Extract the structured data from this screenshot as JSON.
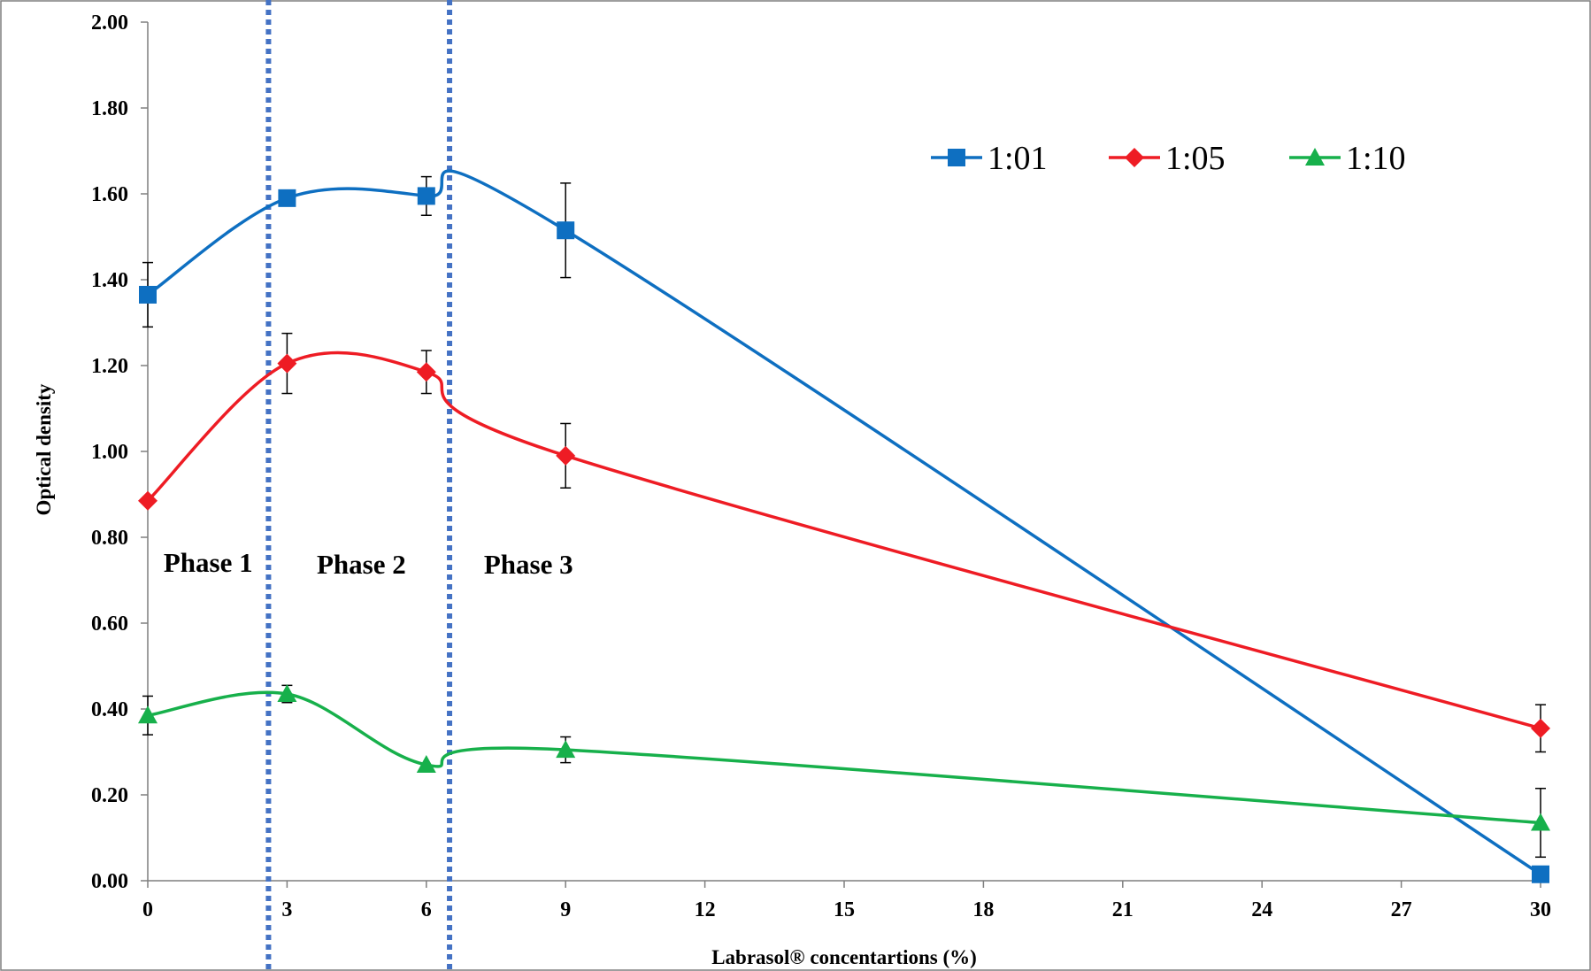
{
  "chart_data": {
    "type": "line",
    "xlabel": "Labrasol® concentartions (%)",
    "ylabel": "Optical density",
    "xlim": [
      0,
      30
    ],
    "ylim": [
      0,
      2.0
    ],
    "x_ticks": [
      "0",
      "3",
      "6",
      "9",
      "12",
      "15",
      "18",
      "21",
      "24",
      "27",
      "30"
    ],
    "y_ticks": [
      "0.00",
      "0.20",
      "0.40",
      "0.60",
      "0.80",
      "1.00",
      "1.20",
      "1.40",
      "1.60",
      "1.80",
      "2.00"
    ],
    "grid": false,
    "legend_position": "top-right",
    "series": [
      {
        "name": "1:01",
        "color": "#0e6fc1",
        "marker": "square",
        "x": [
          0,
          3,
          6,
          9,
          30
        ],
        "values": [
          1.365,
          1.59,
          1.595,
          1.515,
          0.015
        ],
        "errors": [
          0.075,
          0.0,
          0.045,
          0.11,
          0.0
        ]
      },
      {
        "name": "1:05",
        "color": "#ee1c24",
        "marker": "diamond",
        "x": [
          0,
          3,
          6,
          9,
          30
        ],
        "values": [
          0.885,
          1.205,
          1.185,
          0.99,
          0.355
        ],
        "errors": [
          0.0,
          0.07,
          0.05,
          0.075,
          0.055
        ]
      },
      {
        "name": "1:10",
        "color": "#17b04b",
        "marker": "triangle",
        "x": [
          0,
          3,
          6,
          9,
          30
        ],
        "values": [
          0.385,
          0.435,
          0.27,
          0.305,
          0.135
        ],
        "errors": [
          0.045,
          0.02,
          0.0,
          0.03,
          0.08
        ]
      }
    ],
    "phase_boundaries": [
      2.6,
      6.5
    ],
    "annotations": [
      {
        "text": "Phase 1",
        "x": 1.3,
        "y": 0.72
      },
      {
        "text": "Phase 2",
        "x": 4.6,
        "y": 0.715
      },
      {
        "text": "Phase 3",
        "x": 8.2,
        "y": 0.715
      }
    ]
  }
}
